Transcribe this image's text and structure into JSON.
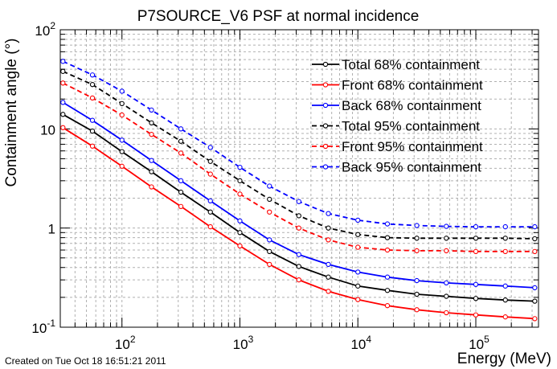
{
  "chart_data": {
    "type": "line",
    "title": "P7SOURCE_V6 PSF at normal incidence",
    "xlabel": "Energy (MeV)",
    "ylabel": "Containment angle (°)",
    "x_scale": "log",
    "y_scale": "log",
    "xlim": [
      30,
      340000
    ],
    "ylim": [
      0.1,
      100
    ],
    "grid": true,
    "legend_position": "top-right",
    "x_ticks": [
      {
        "base": "10",
        "exp": "2",
        "value": 100
      },
      {
        "base": "10",
        "exp": "3",
        "value": 1000
      },
      {
        "base": "10",
        "exp": "4",
        "value": 10000
      },
      {
        "base": "10",
        "exp": "5",
        "value": 100000
      }
    ],
    "y_ticks": [
      {
        "base": "10",
        "exp": "-1",
        "value": 0.1
      },
      {
        "base": "1",
        "exp": "",
        "value": 1
      },
      {
        "base": "10",
        "exp": "",
        "value": 10
      },
      {
        "base": "10",
        "exp": "2",
        "value": 100
      }
    ],
    "x": [
      31.6,
      56.2,
      100,
      178,
      316,
      562,
      1000,
      1780,
      3160,
      5620,
      10000,
      17800,
      31600,
      56200,
      100000,
      178000,
      316000
    ],
    "series": [
      {
        "name": "Total 68% containment",
        "color": "#000000",
        "dashed": false,
        "values": [
          14.0,
          9.5,
          5.9,
          3.7,
          2.3,
          1.45,
          0.9,
          0.58,
          0.41,
          0.32,
          0.26,
          0.235,
          0.215,
          0.205,
          0.195,
          0.188,
          0.183
        ]
      },
      {
        "name": "Front 68% containment",
        "color": "#ff0000",
        "dashed": false,
        "values": [
          10.3,
          6.7,
          4.2,
          2.6,
          1.65,
          1.03,
          0.66,
          0.43,
          0.3,
          0.23,
          0.19,
          0.165,
          0.15,
          0.14,
          0.133,
          0.127,
          0.122
        ]
      },
      {
        "name": "Back 68% containment",
        "color": "#0000ff",
        "dashed": false,
        "values": [
          18.5,
          12.2,
          7.7,
          4.8,
          3.0,
          1.88,
          1.18,
          0.76,
          0.54,
          0.43,
          0.36,
          0.32,
          0.295,
          0.28,
          0.27,
          0.26,
          0.25
        ]
      },
      {
        "name": "Total 95% containment",
        "color": "#000000",
        "dashed": true,
        "values": [
          38.0,
          28.0,
          18.0,
          11.5,
          7.5,
          4.7,
          3.0,
          1.95,
          1.33,
          1.0,
          0.86,
          0.8,
          0.79,
          0.79,
          0.79,
          0.79,
          0.78
        ]
      },
      {
        "name": "Front 95% containment",
        "color": "#ff0000",
        "dashed": true,
        "values": [
          29.0,
          20.5,
          13.8,
          8.8,
          5.7,
          3.5,
          2.2,
          1.45,
          1.0,
          0.76,
          0.64,
          0.6,
          0.59,
          0.59,
          0.58,
          0.58,
          0.58
        ]
      },
      {
        "name": "Back 95% containment",
        "color": "#0000ff",
        "dashed": true,
        "values": [
          48.0,
          35.0,
          24.0,
          15.5,
          10.0,
          6.5,
          4.1,
          2.65,
          1.85,
          1.4,
          1.2,
          1.1,
          1.06,
          1.04,
          1.03,
          1.03,
          1.03
        ]
      }
    ]
  },
  "footer": "Created on Tue Oct 18 16:51:21 2011"
}
